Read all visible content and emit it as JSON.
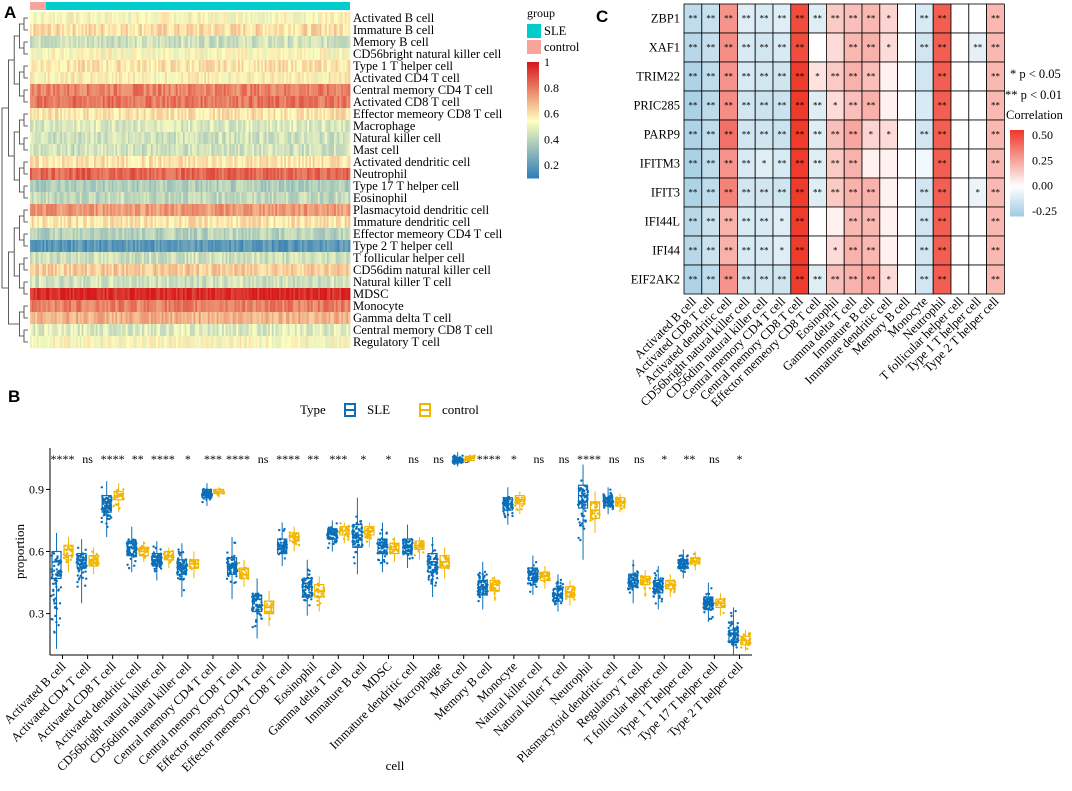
{
  "panels": {
    "a": "A",
    "b": "B",
    "c": "C"
  },
  "colors": {
    "sle": "#00cccc",
    "control": "#f8a39c",
    "heat_low": "#2c7bb6",
    "heat_mid": "#ffffbf",
    "heat_high": "#d7191c",
    "box_sle": "#0a6fb8",
    "box_control": "#f2b600",
    "corr_neg": "#9ecae1",
    "corr_pos": "#ef3b2c"
  },
  "chart_data": [
    {
      "type": "heatmap",
      "panel": "A",
      "group_legend": {
        "title": "group",
        "entries": [
          "SLE",
          "control"
        ]
      },
      "color_scale": {
        "ticks": [
          "1",
          "0.8",
          "0.6",
          "0.4",
          "0.2"
        ],
        "range": [
          0.1,
          1.0
        ]
      },
      "rows": [
        "Activated B cell",
        "Immature  B cell",
        "Memory B cell",
        "CD56bright natural killer cell",
        "Type 1 T helper cell",
        "Activated CD4 T cell",
        "Central memory CD4 T cell",
        "Activated CD8 T cell",
        "Effector memeory CD8 T cell",
        "Macrophage",
        "Natural killer cell",
        "Mast cell",
        "Activated dendritic cell",
        "Neutrophil",
        "Type 17 T helper cell",
        "Eosinophil",
        "Plasmacytoid dendritic cell",
        "Immature dendritic cell",
        "Effector memeory CD4 T cell",
        "Type 2 T helper cell",
        "T follicular helper cell",
        "CD56dim natural killer cell",
        "Natural killer T cell",
        "MDSC",
        "Monocyte",
        "Gamma delta T cell",
        "Central memory CD8 T cell",
        "Regulatory T cell"
      ],
      "row_means": [
        0.55,
        0.62,
        0.45,
        0.55,
        0.6,
        0.57,
        0.8,
        0.82,
        0.6,
        0.48,
        0.45,
        0.45,
        0.6,
        0.85,
        0.38,
        0.42,
        0.75,
        0.6,
        0.4,
        0.2,
        0.45,
        0.65,
        0.45,
        0.97,
        0.8,
        0.7,
        0.48,
        0.55
      ],
      "group_fraction_control": 0.05
    },
    {
      "type": "box",
      "panel": "B",
      "legend": {
        "title": "Type",
        "entries": [
          "SLE",
          "control"
        ]
      },
      "xlabel": "cell",
      "ylabel": "proportion",
      "ylim": [
        0.1,
        1.1
      ],
      "yticks": [
        "0.3",
        "0.6",
        "0.9"
      ],
      "categories": [
        "Activated B cell",
        "Activated CD4 T cell",
        "Activated CD8 T cell",
        "Activated dendritic cell",
        "CD56bright natural killer cell",
        "CD56dim natural killer cell",
        "Central memory CD4 T cell",
        "Central memory CD8 T cell",
        "Effector memeory CD4 T cell",
        "Effector memeory CD8 T cell",
        "Eosinophil",
        "Gamma delta T cell",
        "Immature  B cell",
        "MDSC",
        "Immature dendritic cell",
        "Macrophage",
        "Mast cell",
        "Memory B cell",
        "Monocyte",
        "Natural killer cell",
        "Natural killer T cell",
        "Neutrophil",
        "Plasmacytoid dendritic cell",
        "Regulatory T cell",
        "T follicular helper cell",
        "Type 1 T helper cell",
        "Type 17 T helper cell",
        "Type 2 T helper cell"
      ],
      "significance": [
        "****",
        "ns",
        "****",
        "**",
        "****",
        "*",
        "***",
        "****",
        "ns",
        "****",
        "**",
        "***",
        "*",
        "*",
        "ns",
        "ns",
        "ns",
        "****",
        "*",
        "ns",
        "ns",
        "****",
        "ns",
        "ns",
        "*",
        "**",
        "ns",
        "*"
      ],
      "series": [
        {
          "name": "SLE",
          "median": [
            0.55,
            0.56,
            0.84,
            0.62,
            0.56,
            0.53,
            0.88,
            0.53,
            0.37,
            0.63,
            0.43,
            0.69,
            0.68,
            0.63,
            0.63,
            0.55,
            1.04,
            0.43,
            0.83,
            0.49,
            0.39,
            0.87,
            0.84,
            0.46,
            0.43,
            0.54,
            0.35,
            0.2
          ],
          "q1": [
            0.47,
            0.52,
            0.79,
            0.58,
            0.53,
            0.49,
            0.86,
            0.49,
            0.31,
            0.59,
            0.38,
            0.66,
            0.62,
            0.59,
            0.59,
            0.5,
            1.03,
            0.39,
            0.8,
            0.46,
            0.36,
            0.81,
            0.82,
            0.43,
            0.4,
            0.52,
            0.32,
            0.16
          ],
          "q3": [
            0.6,
            0.59,
            0.87,
            0.65,
            0.59,
            0.56,
            0.9,
            0.57,
            0.39,
            0.66,
            0.47,
            0.71,
            0.73,
            0.66,
            0.66,
            0.59,
            1.05,
            0.46,
            0.86,
            0.52,
            0.42,
            0.92,
            0.86,
            0.49,
            0.46,
            0.56,
            0.38,
            0.22
          ],
          "min": [
            0.13,
            0.35,
            0.67,
            0.5,
            0.46,
            0.38,
            0.82,
            0.37,
            0.18,
            0.53,
            0.29,
            0.6,
            0.49,
            0.5,
            0.52,
            0.38,
            1.01,
            0.32,
            0.73,
            0.39,
            0.31,
            0.56,
            0.78,
            0.35,
            0.32,
            0.47,
            0.26,
            0.1
          ],
          "max": [
            0.69,
            0.66,
            0.94,
            0.72,
            0.65,
            0.64,
            0.93,
            0.67,
            0.47,
            0.74,
            0.56,
            0.75,
            0.86,
            0.74,
            0.73,
            0.67,
            1.08,
            0.55,
            0.91,
            0.58,
            0.49,
            1.02,
            0.91,
            0.56,
            0.53,
            0.61,
            0.45,
            0.33
          ]
        },
        {
          "name": "control",
          "median": [
            0.61,
            0.56,
            0.87,
            0.6,
            0.58,
            0.54,
            0.89,
            0.49,
            0.33,
            0.67,
            0.41,
            0.7,
            0.7,
            0.61,
            0.63,
            0.55,
            1.05,
            0.44,
            0.85,
            0.48,
            0.4,
            0.8,
            0.84,
            0.46,
            0.44,
            0.55,
            0.35,
            0.17
          ],
          "q1": [
            0.58,
            0.53,
            0.85,
            0.58,
            0.56,
            0.52,
            0.88,
            0.47,
            0.3,
            0.65,
            0.38,
            0.68,
            0.68,
            0.59,
            0.61,
            0.52,
            1.04,
            0.41,
            0.83,
            0.46,
            0.38,
            0.76,
            0.82,
            0.44,
            0.42,
            0.54,
            0.33,
            0.15
          ],
          "q3": [
            0.63,
            0.58,
            0.89,
            0.62,
            0.6,
            0.56,
            0.9,
            0.52,
            0.36,
            0.69,
            0.44,
            0.72,
            0.72,
            0.64,
            0.65,
            0.58,
            1.06,
            0.46,
            0.87,
            0.5,
            0.43,
            0.84,
            0.86,
            0.48,
            0.46,
            0.57,
            0.37,
            0.19
          ],
          "min": [
            0.5,
            0.49,
            0.79,
            0.55,
            0.52,
            0.47,
            0.86,
            0.43,
            0.24,
            0.6,
            0.31,
            0.64,
            0.62,
            0.55,
            0.56,
            0.47,
            1.03,
            0.36,
            0.78,
            0.42,
            0.34,
            0.69,
            0.79,
            0.38,
            0.38,
            0.51,
            0.29,
            0.12
          ],
          "max": [
            0.67,
            0.62,
            0.93,
            0.65,
            0.62,
            0.6,
            0.91,
            0.56,
            0.41,
            0.72,
            0.48,
            0.74,
            0.74,
            0.67,
            0.67,
            0.62,
            1.07,
            0.48,
            0.89,
            0.53,
            0.46,
            0.89,
            0.88,
            0.51,
            0.49,
            0.6,
            0.4,
            0.22
          ]
        }
      ]
    },
    {
      "type": "heatmap",
      "panel": "C",
      "rows": [
        "ZBP1",
        "XAF1",
        "TRIM22",
        "PRIC285",
        "PARP9",
        "IFITM3",
        "IFIT3",
        "IFI44L",
        "IFI44",
        "EIF2AK2"
      ],
      "columns": [
        "Activated B cell",
        "Activated CD8 T cell",
        "Activated dendritic cell",
        "CD56bright natural killer cell",
        "CD56dim natural killer cell",
        "Central memory CD4 T cell",
        "Central memory CD8 T cell",
        "Effector memeory CD8 T cell",
        "Eosinophil",
        "Gamma delta T cell",
        "Immature  B cell",
        "Immature dendritic cell",
        "Memory B cell",
        "Monocyte",
        "Neutrophil",
        "T follicular helper cell",
        "Type 1 T helper cell",
        "Type 2 T helper cell"
      ],
      "values": [
        [
          -0.2,
          -0.17,
          0.3,
          -0.1,
          -0.12,
          -0.1,
          0.5,
          -0.1,
          0.15,
          0.18,
          0.2,
          0.12,
          0.0,
          -0.12,
          0.45,
          0.0,
          0.0,
          0.2
        ],
        [
          -0.22,
          -0.18,
          0.32,
          -0.12,
          -0.14,
          -0.12,
          0.5,
          0.0,
          0.1,
          0.2,
          0.22,
          0.1,
          0.0,
          -0.14,
          0.45,
          0.0,
          -0.08,
          0.2
        ],
        [
          -0.25,
          -0.2,
          0.3,
          -0.12,
          -0.14,
          -0.15,
          0.55,
          0.08,
          0.15,
          0.22,
          0.18,
          0.04,
          0.0,
          -0.14,
          0.45,
          0.0,
          0.0,
          0.2
        ],
        [
          -0.26,
          -0.21,
          0.32,
          -0.14,
          -0.16,
          -0.16,
          0.55,
          -0.1,
          0.1,
          0.18,
          0.22,
          0.04,
          0.0,
          -0.12,
          0.45,
          0.0,
          0.0,
          0.2
        ],
        [
          -0.25,
          -0.2,
          0.4,
          -0.14,
          -0.15,
          -0.16,
          0.55,
          -0.1,
          0.18,
          0.25,
          0.12,
          0.1,
          0.0,
          -0.14,
          0.45,
          0.0,
          0.0,
          0.2
        ],
        [
          -0.26,
          -0.2,
          0.3,
          -0.12,
          -0.1,
          -0.12,
          0.55,
          -0.1,
          0.15,
          0.22,
          0.04,
          0.04,
          0.0,
          -0.04,
          0.45,
          0.0,
          0.0,
          0.2
        ],
        [
          -0.25,
          -0.2,
          0.35,
          -0.14,
          -0.14,
          -0.15,
          0.55,
          -0.1,
          0.15,
          0.22,
          0.22,
          0.04,
          0.0,
          -0.14,
          0.45,
          0.0,
          -0.06,
          0.2
        ],
        [
          -0.22,
          -0.16,
          0.22,
          -0.12,
          -0.12,
          -0.1,
          0.55,
          0.0,
          0.04,
          0.2,
          0.2,
          0.04,
          0.0,
          -0.14,
          0.45,
          0.0,
          0.0,
          0.2
        ],
        [
          -0.22,
          -0.16,
          0.22,
          -0.12,
          -0.12,
          -0.1,
          0.55,
          0.0,
          0.1,
          0.22,
          0.2,
          0.04,
          0.0,
          -0.14,
          0.45,
          0.0,
          0.0,
          0.2
        ],
        [
          -0.25,
          -0.2,
          0.3,
          -0.14,
          -0.14,
          -0.15,
          0.55,
          -0.1,
          0.18,
          0.22,
          0.25,
          0.1,
          0.0,
          -0.14,
          0.45,
          0.0,
          0.0,
          0.2
        ]
      ],
      "stars": [
        [
          "**",
          "**",
          "**",
          "**",
          "**",
          "**",
          "**",
          "**",
          "**",
          "**",
          "**",
          "*",
          "",
          "**",
          "**",
          "",
          "",
          "**"
        ],
        [
          "**",
          "**",
          "**",
          "**",
          "**",
          "**",
          "**",
          "",
          "",
          "**",
          "**",
          "*",
          "",
          "**",
          "**",
          "",
          "**",
          "**"
        ],
        [
          "**",
          "**",
          "**",
          "**",
          "**",
          "**",
          "**",
          "*",
          "**",
          "**",
          "**",
          "",
          "",
          "",
          "**",
          "",
          "",
          "**"
        ],
        [
          "**",
          "**",
          "**",
          "**",
          "**",
          "**",
          "**",
          "**",
          "*",
          "**",
          "**",
          "",
          "",
          "",
          "**",
          "",
          "",
          "**"
        ],
        [
          "**",
          "**",
          "**",
          "**",
          "**",
          "**",
          "**",
          "**",
          "**",
          "**",
          "*",
          "*",
          "",
          "**",
          "**",
          "",
          "",
          "**"
        ],
        [
          "**",
          "**",
          "**",
          "**",
          "*",
          "**",
          "**",
          "**",
          "**",
          "**",
          "",
          "",
          "",
          "",
          "**",
          "",
          "",
          "**"
        ],
        [
          "**",
          "**",
          "**",
          "**",
          "**",
          "**",
          "**",
          "**",
          "**",
          "**",
          "**",
          "",
          "",
          "**",
          "**",
          "",
          "*",
          "**"
        ],
        [
          "**",
          "**",
          "**",
          "**",
          "**",
          "*",
          "**",
          "",
          "",
          "**",
          "**",
          "",
          "",
          "**",
          "**",
          "",
          "",
          "**"
        ],
        [
          "**",
          "**",
          "**",
          "**",
          "**",
          "*",
          "**",
          "",
          "*",
          "**",
          "**",
          "",
          "",
          "**",
          "**",
          "",
          "",
          "**"
        ],
        [
          "**",
          "**",
          "**",
          "**",
          "**",
          "**",
          "**",
          "**",
          "**",
          "**",
          "**",
          "*",
          "",
          "**",
          "**",
          "",
          "",
          "**"
        ]
      ],
      "p_legend": [
        "* p < 0.05",
        "** p < 0.01"
      ],
      "colorbar": {
        "title": "Correlation",
        "ticks": [
          "0.50",
          "0.25",
          "0.00",
          "-0.25"
        ],
        "range": [
          -0.3,
          0.55
        ]
      }
    }
  ]
}
